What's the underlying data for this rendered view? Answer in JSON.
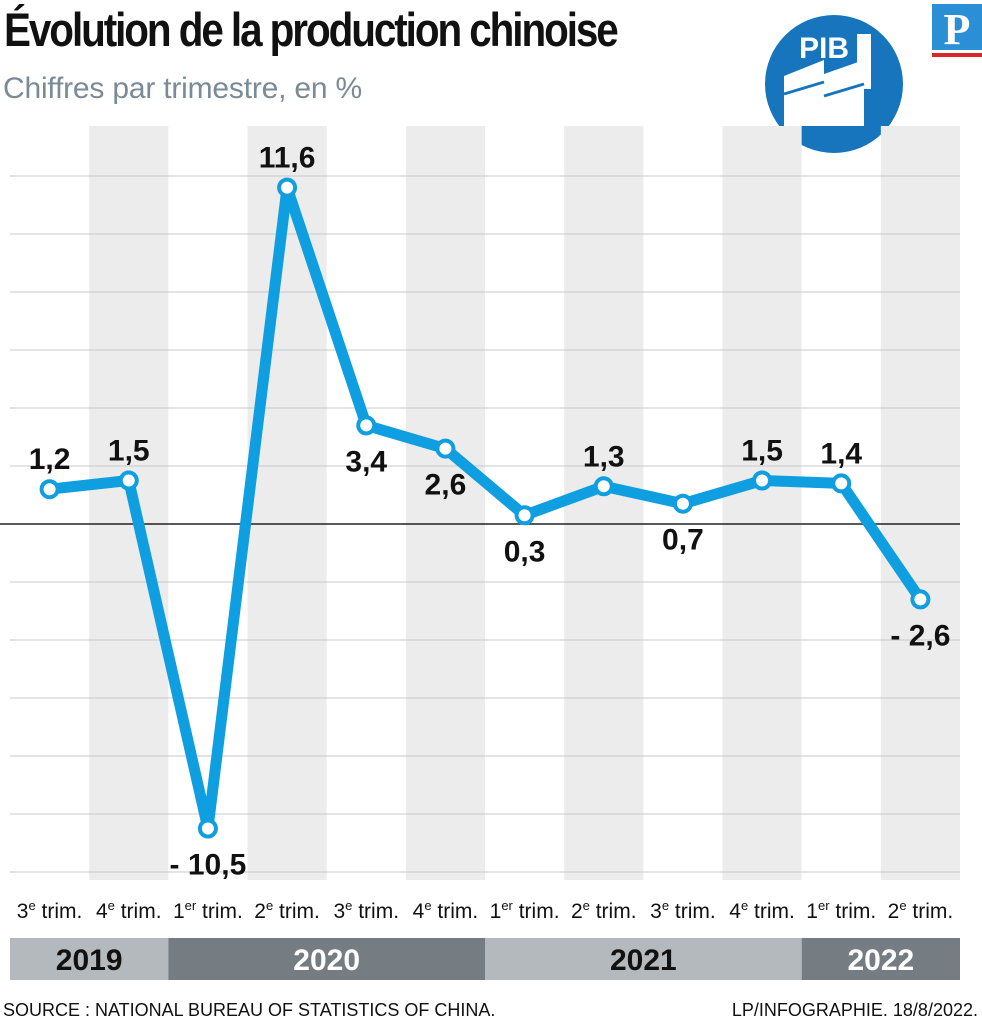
{
  "header": {
    "title": "Évolution de la production chinoise",
    "subtitle": "Chiffres par trimestre, en %",
    "badge_text": "PIB",
    "logo_letter": "P"
  },
  "colors": {
    "line": "#0f9ee0",
    "band": "#ececec",
    "grid": "#c8c8c8",
    "zero": "#222222",
    "year_light": "#b4b9bd",
    "year_dark": "#757c82",
    "badge": "#1675bd",
    "logo": "#2a8fd4"
  },
  "chart_data": {
    "type": "line",
    "title": "Évolution de la production chinoise",
    "subtitle": "Chiffres par trimestre, en %",
    "x": [
      {
        "num": "3",
        "sup": "e",
        "suffix": " trim."
      },
      {
        "num": "4",
        "sup": "e",
        "suffix": " trim."
      },
      {
        "num": "1",
        "sup": "er",
        "suffix": " trim."
      },
      {
        "num": "2",
        "sup": "e",
        "suffix": " trim."
      },
      {
        "num": "3",
        "sup": "e",
        "suffix": " trim."
      },
      {
        "num": "4",
        "sup": "e",
        "suffix": " trim."
      },
      {
        "num": "1",
        "sup": "er",
        "suffix": " trim."
      },
      {
        "num": "2",
        "sup": "e",
        "suffix": " trim."
      },
      {
        "num": "3",
        "sup": "e",
        "suffix": " trim."
      },
      {
        "num": "4",
        "sup": "e",
        "suffix": " trim."
      },
      {
        "num": "1",
        "sup": "er",
        "suffix": " trim."
      },
      {
        "num": "2",
        "sup": "e",
        "suffix": " trim."
      }
    ],
    "values": [
      1.2,
      1.5,
      -10.5,
      11.6,
      3.4,
      2.6,
      0.3,
      1.3,
      0.7,
      1.5,
      1.4,
      -2.6
    ],
    "value_labels": [
      "1,2",
      "1,5",
      "- 10,5",
      "11,6",
      "3,4",
      "2,6",
      "0,3",
      "1,3",
      "0,7",
      "1,5",
      "1,4",
      "- 2,6"
    ],
    "label_positions": [
      "above",
      "above",
      "below",
      "above",
      "below",
      "below",
      "below",
      "above",
      "below",
      "above",
      "above",
      "below"
    ],
    "years": [
      {
        "label": "2019",
        "start": 0,
        "end": 1,
        "shade": "light"
      },
      {
        "label": "2020",
        "start": 2,
        "end": 5,
        "shade": "dark"
      },
      {
        "label": "2021",
        "start": 6,
        "end": 9,
        "shade": "light"
      },
      {
        "label": "2022",
        "start": 10,
        "end": 11,
        "shade": "dark"
      }
    ],
    "ylim": [
      -12,
      12
    ],
    "grid_step": 2,
    "grid": true,
    "zero_line": true
  },
  "footer": {
    "source": "SOURCE : NATIONAL BUREAU OF STATISTICS OF CHINA.",
    "credit": "LP/INFOGRAPHIE. 18/8/2022."
  }
}
